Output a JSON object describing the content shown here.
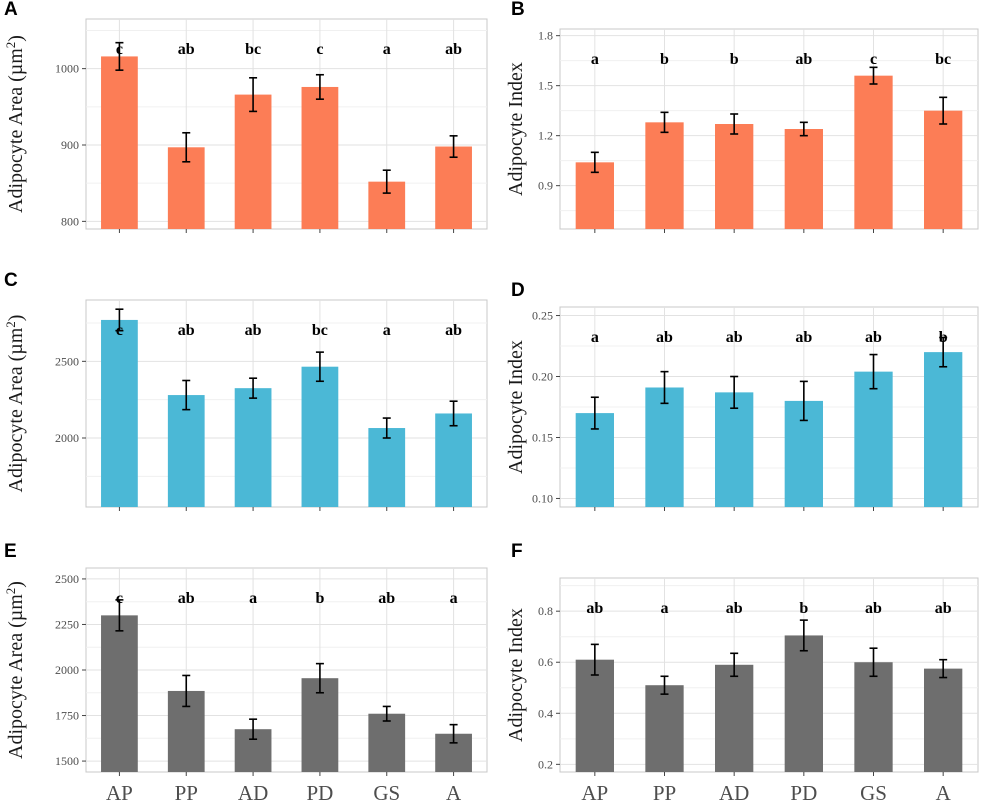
{
  "chart_data": [
    {
      "panel": "A",
      "type": "bar",
      "color": "#FC7D56",
      "ylabel_pre": "Adipocyte Area (µm",
      "ylabel_sup": "2",
      "ylabel_post": ")",
      "ylim": [
        790,
        1065
      ],
      "yticks": [
        800,
        900,
        1000
      ],
      "categories": [
        "AP",
        "PP",
        "AD",
        "PD",
        "GS",
        "A"
      ],
      "values": [
        1016,
        897,
        966,
        976,
        852,
        898
      ],
      "errors": [
        18,
        19,
        22,
        16,
        15,
        14
      ],
      "letters": [
        "c",
        "ab",
        "bc",
        "c",
        "a",
        "ab"
      ],
      "show_xticks": false
    },
    {
      "panel": "B",
      "type": "bar",
      "color": "#FC7D56",
      "ylabel": "Adipocyte Index",
      "ylim": [
        0.64,
        1.84
      ],
      "yticks": [
        0.9,
        1.2,
        1.5,
        1.8
      ],
      "ytick_labels": [
        "0.9",
        "1.2",
        "1.5",
        "1.8"
      ],
      "categories": [
        "AP",
        "PP",
        "AD",
        "PD",
        "GS",
        "A"
      ],
      "values": [
        1.04,
        1.28,
        1.27,
        1.24,
        1.56,
        1.35
      ],
      "errors": [
        0.06,
        0.06,
        0.06,
        0.04,
        0.05,
        0.08
      ],
      "letters": [
        "a",
        "b",
        "b",
        "ab",
        "c",
        "bc"
      ],
      "show_xticks": false
    },
    {
      "panel": "C",
      "type": "bar",
      "color": "#4BB8D6",
      "ylabel_pre": "Adipocyte Area (µm",
      "ylabel_sup": "2",
      "ylabel_post": ")",
      "ylim": [
        1550,
        2900
      ],
      "yticks": [
        2000,
        2500
      ],
      "categories": [
        "AP",
        "PP",
        "AD",
        "PD",
        "GS",
        "A"
      ],
      "values": [
        2770,
        2280,
        2325,
        2465,
        2065,
        2160
      ],
      "errors": [
        70,
        95,
        65,
        95,
        65,
        80
      ],
      "letters": [
        "c",
        "ab",
        "ab",
        "bc",
        "a",
        "ab"
      ],
      "show_xticks": false
    },
    {
      "panel": "D",
      "type": "bar",
      "color": "#4BB8D6",
      "ylabel": "Adipocyte Index",
      "ylim": [
        0.093,
        0.257
      ],
      "yticks": [
        0.1,
        0.15,
        0.2,
        0.25
      ],
      "ytick_labels": [
        "0.10",
        "0.15",
        "0.20",
        "0.25"
      ],
      "categories": [
        "AP",
        "PP",
        "AD",
        "PD",
        "GS",
        "A"
      ],
      "values": [
        0.17,
        0.191,
        0.187,
        0.18,
        0.204,
        0.22
      ],
      "errors": [
        0.013,
        0.013,
        0.013,
        0.016,
        0.014,
        0.012
      ],
      "letters": [
        "a",
        "ab",
        "ab",
        "ab",
        "ab",
        "b"
      ],
      "show_xticks": false
    },
    {
      "panel": "E",
      "type": "bar",
      "color": "#6E6E6E",
      "ylabel_pre": "Adipocyte Area (µm",
      "ylabel_sup": "2",
      "ylabel_post": ")",
      "ylim": [
        1440,
        2560
      ],
      "yticks": [
        1500,
        1750,
        2000,
        2250,
        2500
      ],
      "categories": [
        "AP",
        "PP",
        "AD",
        "PD",
        "GS",
        "A"
      ],
      "values": [
        2300,
        1885,
        1675,
        1955,
        1760,
        1650
      ],
      "errors": [
        85,
        85,
        55,
        80,
        40,
        50
      ],
      "letters": [
        "c",
        "ab",
        "a",
        "b",
        "ab",
        "a"
      ],
      "show_xticks": true
    },
    {
      "panel": "F",
      "type": "bar",
      "color": "#6E6E6E",
      "ylabel": "Adipocyte Index",
      "ylim": [
        0.17,
        0.93
      ],
      "yticks": [
        0.2,
        0.4,
        0.6,
        0.8
      ],
      "ytick_labels": [
        "0.2",
        "0.4",
        "0.6",
        "0.8"
      ],
      "categories": [
        "AP",
        "PP",
        "AD",
        "PD",
        "GS",
        "A"
      ],
      "values": [
        0.61,
        0.51,
        0.59,
        0.705,
        0.6,
        0.575
      ],
      "errors": [
        0.06,
        0.035,
        0.045,
        0.06,
        0.055,
        0.035
      ],
      "letters": [
        "ab",
        "a",
        "ab",
        "b",
        "ab",
        "ab"
      ],
      "show_xticks": true
    }
  ]
}
